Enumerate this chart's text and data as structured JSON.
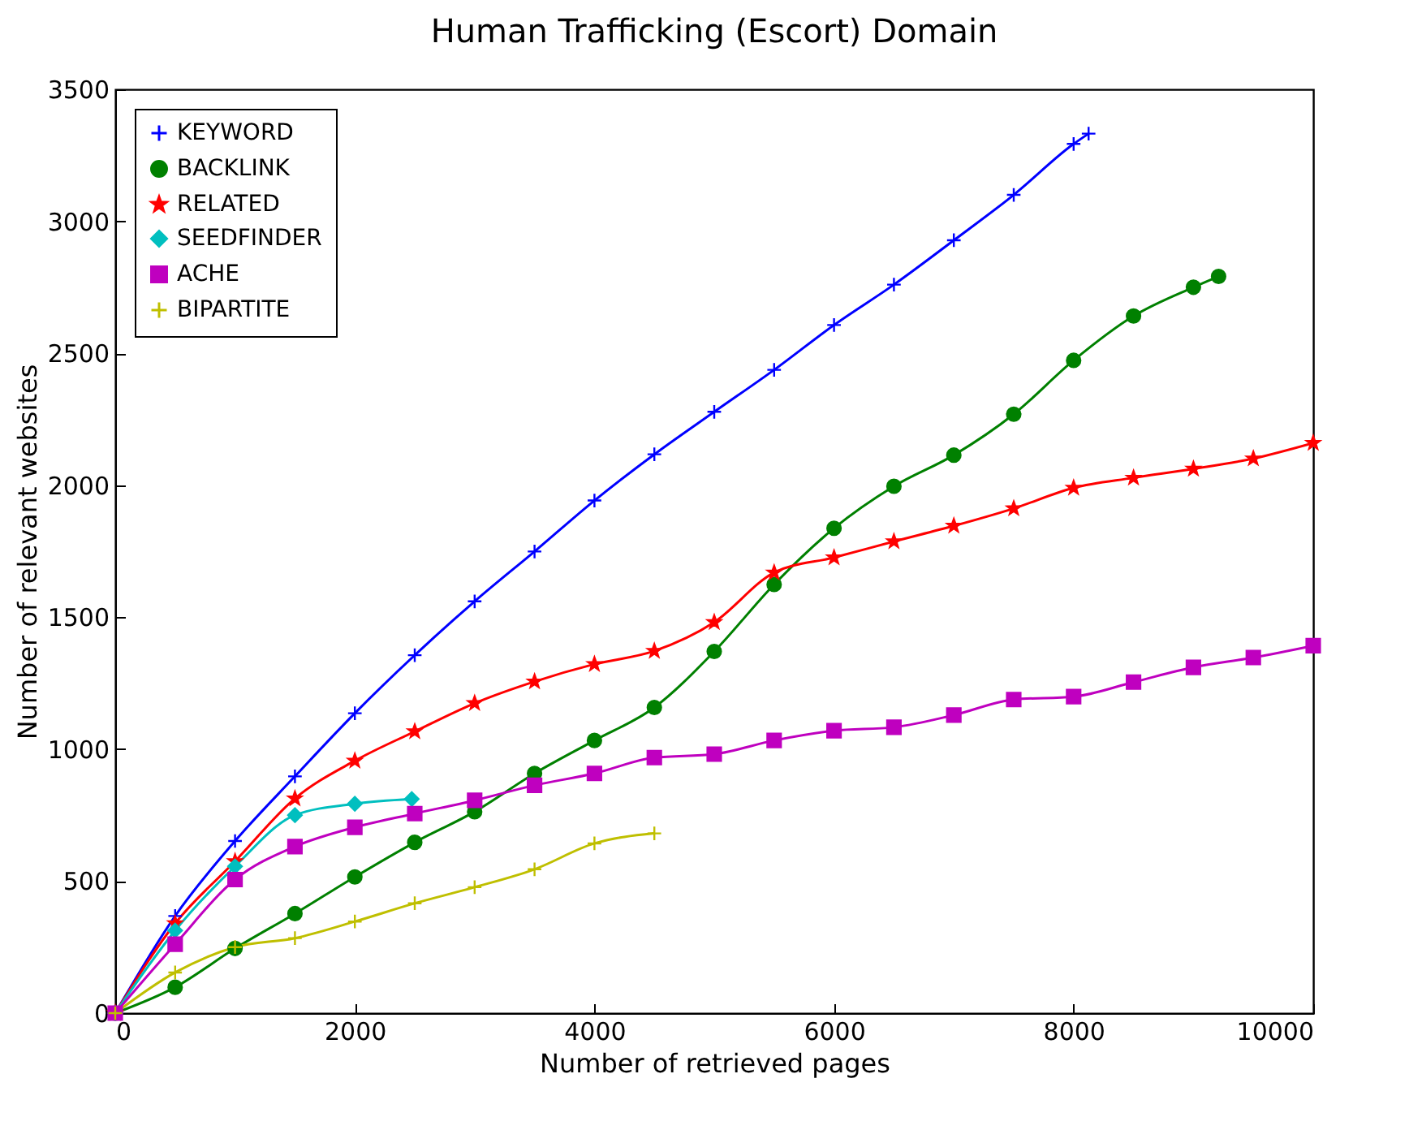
{
  "chart_data": {
    "type": "line",
    "title": "Human Trafficking (Escort) Domain",
    "xlabel": "Number of retrieved pages",
    "ylabel": "Number of relevant websites",
    "xlim": [
      0,
      10000
    ],
    "xticks": [
      0,
      2000,
      4000,
      6000,
      8000,
      10000
    ],
    "ylim": [
      0,
      3500
    ],
    "yticks": [
      0,
      500,
      1000,
      1500,
      2000,
      2500,
      3000,
      3500
    ],
    "grid": false,
    "legend": "top left",
    "line_style": "solid",
    "series": [
      {
        "name": "KEYWORD",
        "color": "#0000ff",
        "marker": "cross",
        "x": [
          0,
          500,
          1000,
          1500,
          2000,
          2500,
          3000,
          3500,
          4000,
          4500,
          5000,
          5500,
          6000,
          6500,
          7000,
          7500,
          8000,
          8125
        ],
        "values": [
          0,
          368,
          652,
          897,
          1136,
          1356,
          1560,
          1749,
          1942,
          2117,
          2278,
          2437,
          2607,
          2760,
          2928,
          3100,
          3293,
          3332
        ]
      },
      {
        "name": "BACKLINK",
        "color": "#008000",
        "marker": "circle",
        "x": [
          0,
          500,
          1000,
          1500,
          2000,
          2500,
          3000,
          3500,
          4000,
          4500,
          5000,
          5500,
          6000,
          6500,
          7000,
          7500,
          8000,
          8500,
          9000,
          9210
        ],
        "values": [
          0,
          98,
          245,
          377,
          516,
          647,
          763,
          908,
          1033,
          1158,
          1370,
          1624,
          1837,
          1996,
          2114,
          2269,
          2473,
          2641,
          2750,
          2791
        ]
      },
      {
        "name": "RELATED",
        "color": "#ff0000",
        "marker": "star",
        "x": [
          0,
          500,
          1000,
          1500,
          2000,
          2500,
          3000,
          3500,
          4000,
          4500,
          5000,
          5500,
          6000,
          6500,
          7000,
          7500,
          8000,
          8500,
          9000,
          9500,
          10000
        ],
        "values": [
          0,
          340,
          575,
          813,
          956,
          1067,
          1174,
          1256,
          1322,
          1372,
          1481,
          1669,
          1726,
          1787,
          1846,
          1912,
          1990,
          2028,
          2062,
          2101,
          2160
        ]
      },
      {
        "name": "SEEDFINDER",
        "color": "#00bfbf",
        "marker": "diamond",
        "x": [
          0,
          500,
          1000,
          1500,
          2000,
          2475
        ],
        "values": [
          0,
          313,
          556,
          750,
          793,
          811
        ]
      },
      {
        "name": "ACHE",
        "color": "#bf00bf",
        "marker": "square",
        "x": [
          0,
          500,
          1000,
          1500,
          2000,
          2500,
          3000,
          3500,
          4000,
          4500,
          5000,
          5500,
          6000,
          6500,
          7000,
          7500,
          8000,
          8500,
          9000,
          9500,
          10000
        ],
        "values": [
          0,
          261,
          506,
          631,
          704,
          756,
          806,
          863,
          908,
          968,
          981,
          1033,
          1070,
          1083,
          1129,
          1188,
          1199,
          1254,
          1310,
          1347,
          1392
        ]
      },
      {
        "name": "BIPARTITE",
        "color": "#bfbf00",
        "marker": "cross",
        "x": [
          0,
          500,
          1000,
          1500,
          2000,
          2500,
          3000,
          3500,
          4000,
          4500
        ],
        "values": [
          0,
          154,
          250,
          284,
          347,
          416,
          477,
          545,
          643,
          681
        ]
      }
    ]
  }
}
